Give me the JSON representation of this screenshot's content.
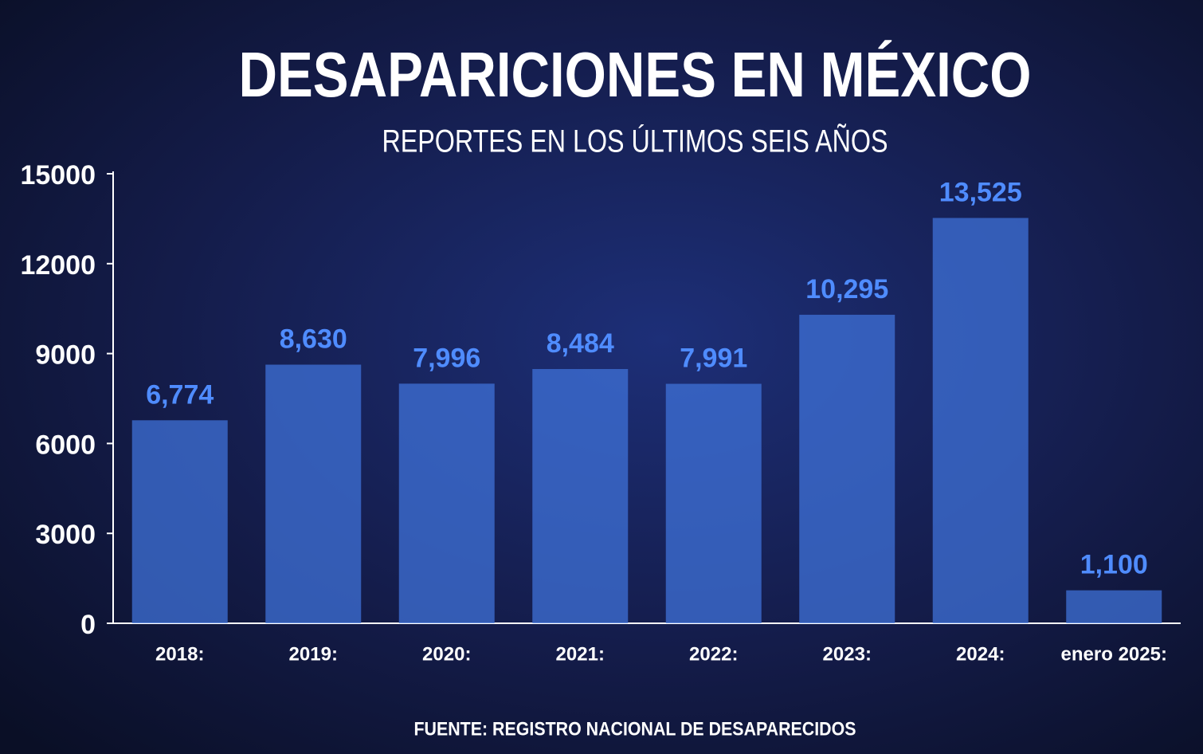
{
  "chart_data": {
    "type": "bar",
    "title": "DESAPARICIONES EN MÉXICO",
    "subtitle": "REPORTES EN LOS ÚLTIMOS SEIS AÑOS",
    "source": "FUENTE: REGISTRO NACIONAL DE DESAPARECIDOS",
    "categories": [
      "2018:",
      "2019:",
      "2020:",
      "2021:",
      "2022:",
      "2023:",
      "2024:",
      "enero 2025:"
    ],
    "values": [
      6774,
      8630,
      7996,
      8484,
      7991,
      10295,
      13525,
      1100
    ],
    "value_labels": [
      "6,774",
      "8,630",
      "7,996",
      "8,484",
      "7,991",
      "10,295",
      "13,525",
      "1,100"
    ],
    "color": "#3f72d8",
    "value_label_color": "#4f8cff",
    "ylim": [
      0,
      15000
    ],
    "yticks": [
      0,
      3000,
      6000,
      9000,
      12000,
      15000
    ],
    "grid": false
  }
}
